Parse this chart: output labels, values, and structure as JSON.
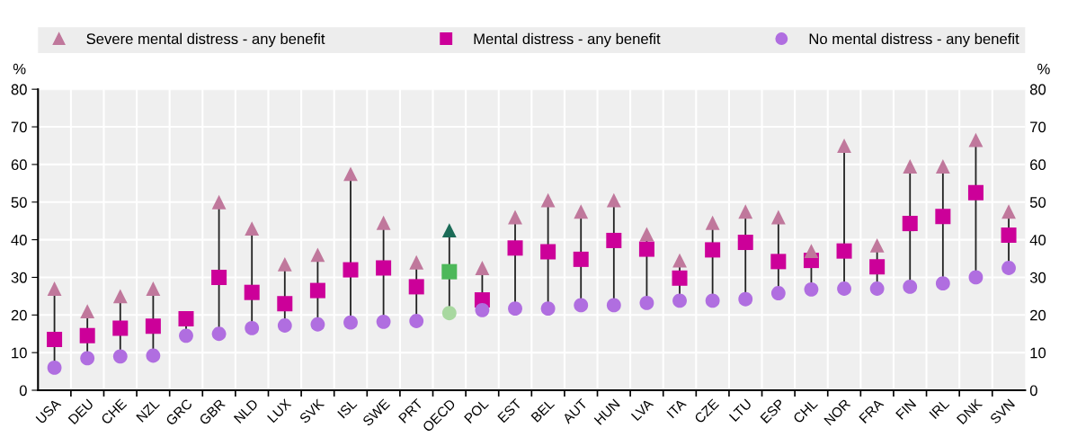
{
  "chart_data": {
    "type": "scatter",
    "categories": [
      "USA",
      "DEU",
      "CHE",
      "NZL",
      "GRC",
      "GBR",
      "NLD",
      "LUX",
      "SVK",
      "ISL",
      "SWE",
      "PRT",
      "OECD",
      "POL",
      "EST",
      "BEL",
      "AUT",
      "HUN",
      "LVA",
      "ITA",
      "CZE",
      "LTU",
      "ESP",
      "CHL",
      "NOR",
      "FRA",
      "FIN",
      "IRL",
      "DNK",
      "SVN"
    ],
    "series": [
      {
        "name": "Severe mental distress - any benefit",
        "marker": "triangle",
        "color": "#c0789c",
        "colors": [
          "#c0789c",
          "#c0789c",
          "#c0789c",
          "#c0789c",
          "#c0789c",
          "#c0789c",
          "#c0789c",
          "#c0789c",
          "#c0789c",
          "#c0789c",
          "#c0789c",
          "#c0789c",
          "#1b6b57",
          "#c0789c",
          "#c0789c",
          "#c0789c",
          "#c0789c",
          "#c0789c",
          "#c0789c",
          "#c0789c",
          "#c0789c",
          "#c0789c",
          "#c0789c",
          "#c0789c",
          "#c0789c",
          "#c0789c",
          "#c0789c",
          "#c0789c",
          "#c0789c",
          "#c0789c"
        ],
        "values": [
          27,
          21,
          25,
          27,
          null,
          50,
          43,
          33.5,
          36,
          57.5,
          44.5,
          34,
          42.5,
          32.5,
          46,
          50.5,
          47.5,
          50.5,
          41.5,
          34.5,
          44.5,
          47.5,
          46,
          37,
          65,
          38.5,
          59.5,
          59.5,
          66.5,
          47.5
        ]
      },
      {
        "name": "Mental distress - any benefit",
        "marker": "square",
        "color": "#cc0099",
        "colors": [
          "#cc0099",
          "#cc0099",
          "#cc0099",
          "#cc0099",
          "#cc0099",
          "#cc0099",
          "#cc0099",
          "#cc0099",
          "#cc0099",
          "#cc0099",
          "#cc0099",
          "#cc0099",
          "#4db85a",
          "#cc0099",
          "#cc0099",
          "#cc0099",
          "#cc0099",
          "#cc0099",
          "#cc0099",
          "#cc0099",
          "#cc0099",
          "#cc0099",
          "#cc0099",
          "#cc0099",
          "#cc0099",
          "#cc0099",
          "#cc0099",
          "#cc0099",
          "#cc0099",
          "#cc0099"
        ],
        "values": [
          13.5,
          14.5,
          16.5,
          17,
          19,
          30,
          26,
          23,
          26.5,
          32,
          32.5,
          27.5,
          31.5,
          24,
          37.8,
          36.8,
          34.8,
          39.8,
          37.5,
          29.8,
          37.3,
          39.3,
          34.2,
          34.5,
          37,
          32.8,
          44.3,
          46.2,
          52.5,
          41.2
        ]
      },
      {
        "name": "No mental distress - any benefit",
        "marker": "circle",
        "color": "#b06ee0",
        "colors": [
          "#b06ee0",
          "#b06ee0",
          "#b06ee0",
          "#b06ee0",
          "#b06ee0",
          "#b06ee0",
          "#b06ee0",
          "#b06ee0",
          "#b06ee0",
          "#b06ee0",
          "#b06ee0",
          "#b06ee0",
          "#a8d8a0",
          "#b06ee0",
          "#b06ee0",
          "#b06ee0",
          "#b06ee0",
          "#b06ee0",
          "#b06ee0",
          "#b06ee0",
          "#b06ee0",
          "#b06ee0",
          "#b06ee0",
          "#b06ee0",
          "#b06ee0",
          "#b06ee0",
          "#b06ee0",
          "#b06ee0",
          "#b06ee0",
          "#b06ee0"
        ],
        "values": [
          6,
          8.5,
          9,
          9.2,
          14.5,
          15,
          16.5,
          17.2,
          17.5,
          18,
          18.2,
          18.4,
          20.5,
          21.3,
          21.7,
          21.7,
          22.6,
          22.6,
          23.2,
          23.8,
          23.8,
          24.2,
          25.8,
          26.8,
          27,
          27,
          27.5,
          28.4,
          30,
          32.5
        ]
      }
    ],
    "ylabel": "%",
    "y2label": "%",
    "ylim": [
      0,
      80
    ],
    "yticks": [
      0,
      10,
      20,
      30,
      40,
      50,
      60,
      70,
      80
    ],
    "y2lim": [
      0,
      80
    ],
    "y2ticks": [
      0,
      10,
      20,
      30,
      40,
      50,
      60,
      70,
      80
    ],
    "grid": true,
    "legend": "top"
  }
}
